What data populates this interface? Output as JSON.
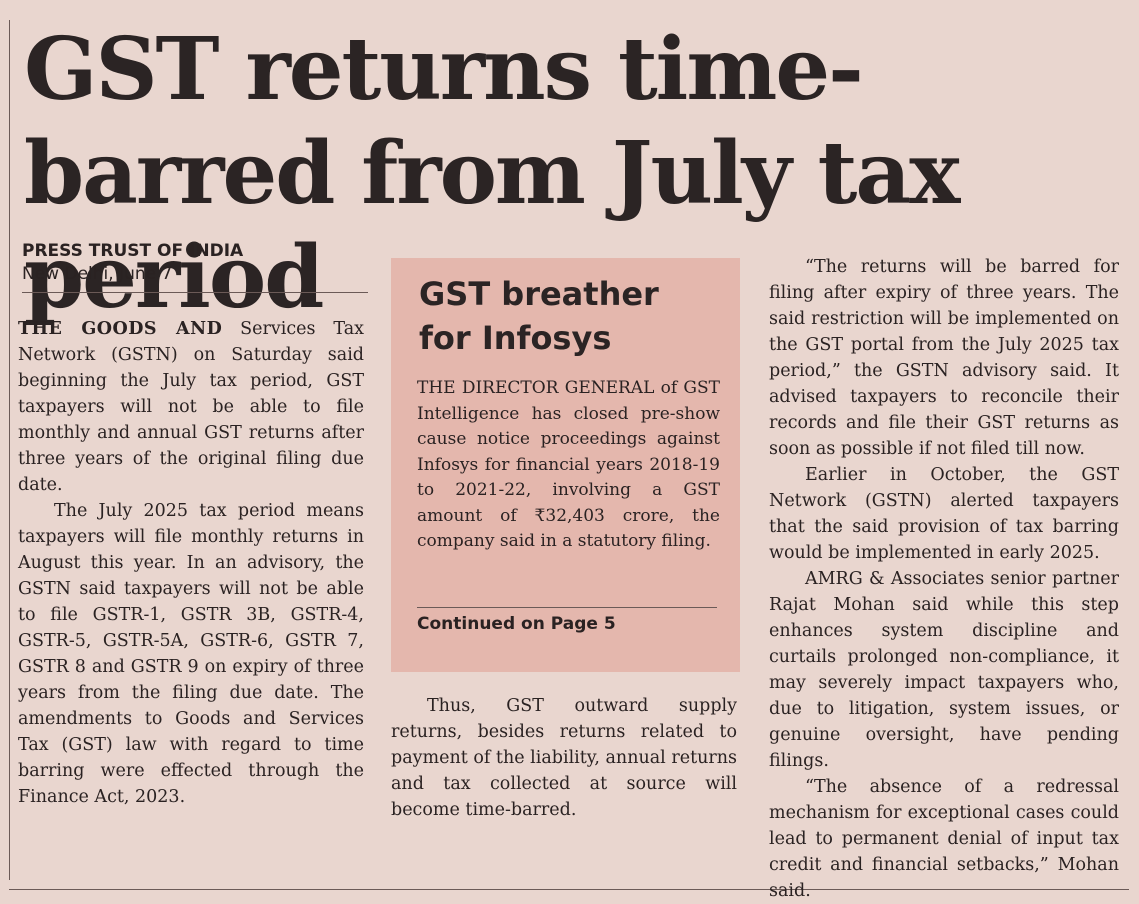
{
  "article": {
    "headline": "GST returns time-barred from July tax period",
    "agency": "PRESS TRUST OF INDIA",
    "dateline": "New Delhi, June 7",
    "lead_caps": "THE GOODS AND",
    "p1_rest": " Services Tax Network (GSTN) on Saturday said beginning the July tax period, GST taxpayers will not be able to file monthly and annual GST returns after three years of the original filing due date.",
    "p2": "The July 2025 tax period means taxpayers will file monthly returns in August this year. In an advisory, the GSTN said taxpayers will not be able to file GSTR-1, GSTR 3B, GSTR-4, GSTR-5, GSTR-5A, GSTR-6, GSTR 7, GSTR 8 and GSTR 9 on expiry of three years from the filing due date. The amendments to Goods and Services Tax (GST) law with regard to time barring were effected through the Finance Act, 2023.",
    "p3": "Thus, GST outward supply returns, besides returns related to payment of the liability, annual returns and tax collected at source will become time-barred.",
    "p4": "“The returns will be barred for filing after expiry of three years. The said restriction will be implemented on the GST portal from the July 2025 tax period,” the GSTN advisory said. It advised taxpayers to reconcile their records and file their GST returns as soon as possible if not filed till now.",
    "p5": "Earlier in October, the GST Network (GSTN) alerted taxpayers that the said provision of tax barring would be implemented in early 2025.",
    "p6": "AMRG & Associates senior partner Rajat Mohan said while this step enhances system discipline and curtails prolonged non-compliance, it may severely impact taxpayers who, due to litigation, system issues, or genuine oversight, have pending filings.",
    "p7": "“The absence of a redressal mechanism for exceptional cases could lead to permanent denial of input tax credit and financial setbacks,” Mohan said."
  },
  "sidebar": {
    "title": "GST breather for Infosys",
    "body": "THE DIRECTOR GENERAL of GST Intelligence has closed pre-show cause notice proceedings against Infosys for financial years 2018-19 to 2021-22, involving a GST amount of ₹32,403 crore, the company said in a statutory filing.",
    "continued": "Continued on Page 5"
  },
  "colors": {
    "paper": "#e9d6cf",
    "box": "#e4b7ad",
    "ink": "#2a2222"
  }
}
